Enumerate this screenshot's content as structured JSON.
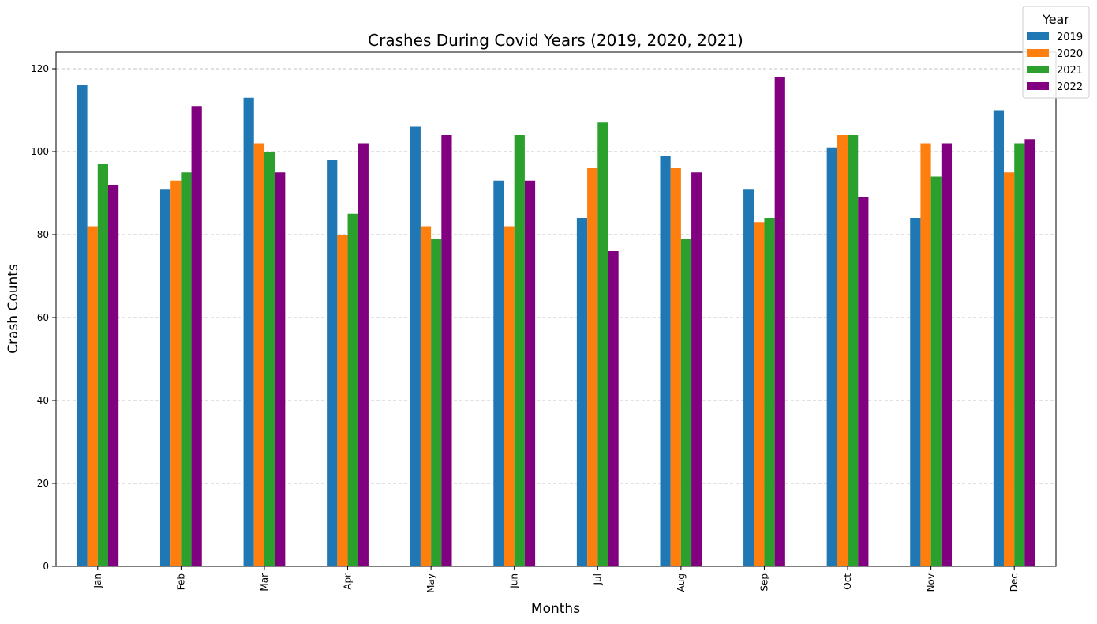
{
  "chart_data": {
    "type": "bar",
    "title": "Crashes During Covid Years (2019, 2020, 2021)",
    "xlabel": "Months",
    "ylabel": "Crash Counts",
    "categories": [
      "Jan",
      "Feb",
      "Mar",
      "Apr",
      "May",
      "Jun",
      "Jul",
      "Aug",
      "Sep",
      "Oct",
      "Nov",
      "Dec"
    ],
    "series": [
      {
        "name": "2019",
        "color": "#1f77b4",
        "values": [
          116,
          91,
          113,
          98,
          106,
          93,
          84,
          99,
          91,
          101,
          84,
          110
        ]
      },
      {
        "name": "2020",
        "color": "#ff7f0e",
        "values": [
          82,
          93,
          102,
          80,
          82,
          82,
          96,
          96,
          83,
          104,
          102,
          95
        ]
      },
      {
        "name": "2021",
        "color": "#2ca02c",
        "values": [
          97,
          95,
          100,
          85,
          79,
          104,
          107,
          79,
          84,
          104,
          94,
          102
        ]
      },
      {
        "name": "2022",
        "color": "#800080",
        "values": [
          92,
          111,
          95,
          102,
          104,
          93,
          76,
          95,
          118,
          89,
          102,
          103
        ]
      }
    ],
    "ylim": [
      0,
      124
    ],
    "yticks": [
      0,
      20,
      40,
      60,
      80,
      100,
      120
    ],
    "grid": "y-dashed",
    "legend": {
      "title": "Year",
      "placement": "top-right"
    }
  }
}
